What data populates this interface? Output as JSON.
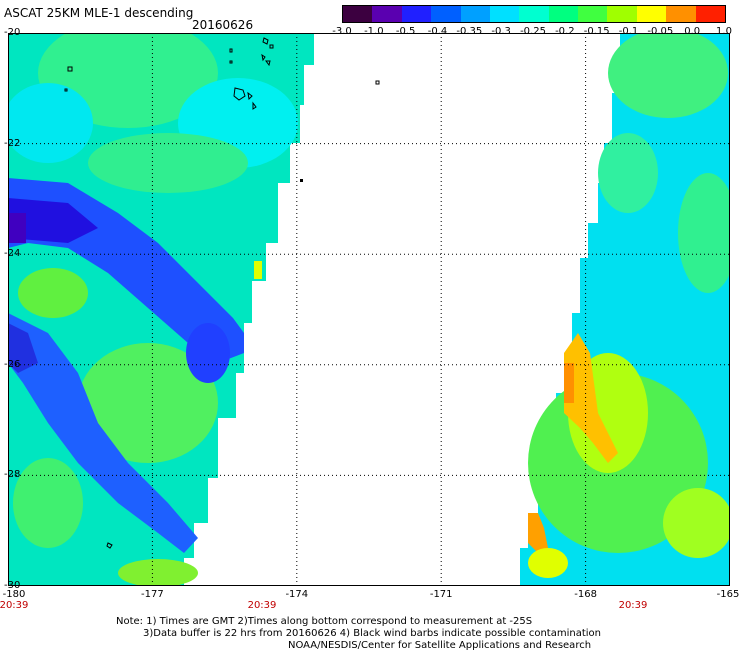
{
  "header": {
    "title": "ASCAT 25KM MLE-1 descending",
    "date": "20160626"
  },
  "colorbar": {
    "labels": [
      "-3.0",
      "-1.0",
      "-0.5",
      "-0.4",
      "-0.35",
      "-0.3",
      "-0.25",
      "-0.2",
      "-0.15",
      "-0.1",
      "-0.05",
      "0.0",
      "1.0"
    ],
    "colors": [
      "#3c0040",
      "#5a00b0",
      "#2020ff",
      "#0060ff",
      "#00a0ff",
      "#00e0ff",
      "#00ffd0",
      "#00ff80",
      "#40ff40",
      "#a0ff00",
      "#ffff00",
      "#ff9000",
      "#ff2000"
    ]
  },
  "map": {
    "lat_labels": [
      "-20",
      "-22",
      "-24",
      "-26",
      "-28",
      "-30"
    ],
    "lon_labels": [
      "-180",
      "-177",
      "-174",
      "-171",
      "-168",
      "-165"
    ],
    "time_labels": [
      "20:39",
      "20:39",
      "20:39"
    ],
    "islands_color": "#000000"
  },
  "notes": {
    "line1": "Note: 1) Times are GMT 2)Times along bottom correspond to measurement at -25S",
    "line2": "3)Data buffer is 22 hrs from 20160626 4) Black wind barbs indicate possible contamination",
    "line3": "NOAA/NESDIS/Center for Satellite Applications and Research"
  }
}
